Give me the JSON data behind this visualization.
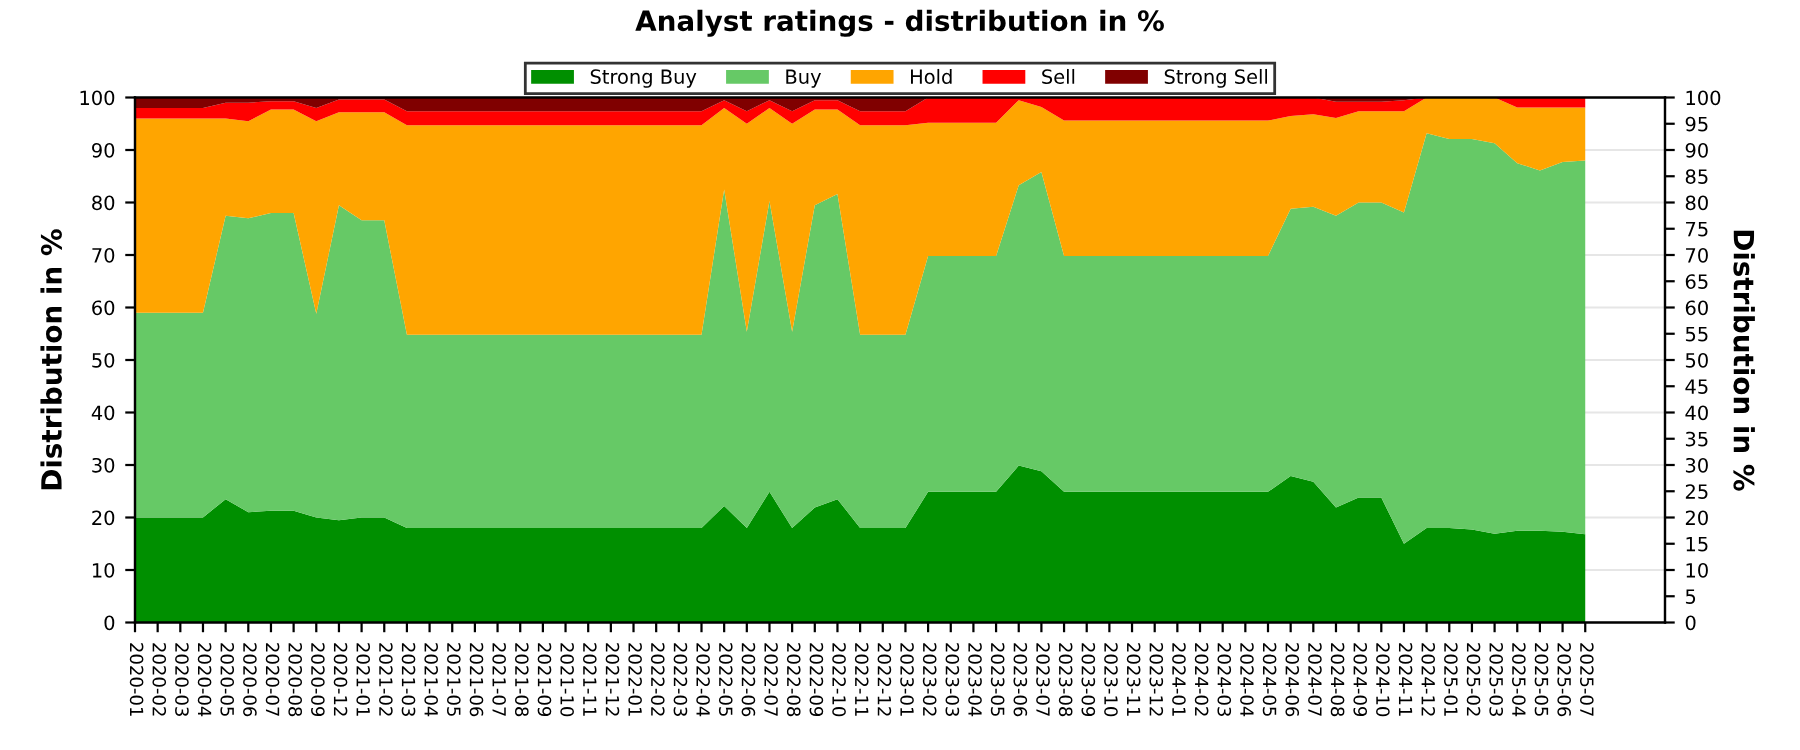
{
  "chart_data": {
    "type": "area",
    "stacked": true,
    "title": "Analyst ratings - distribution in %",
    "ylabel": "Distribution in %",
    "y2label": "Distribution in %",
    "categories": [
      "2020-01",
      "2020-02",
      "2020-03",
      "2020-04",
      "2020-05",
      "2020-06",
      "2020-07",
      "2020-08",
      "2020-09",
      "2020-12",
      "2021-01",
      "2021-02",
      "2021-03",
      "2021-04",
      "2021-05",
      "2021-06",
      "2021-07",
      "2021-08",
      "2021-09",
      "2021-10",
      "2021-11",
      "2021-12",
      "2022-01",
      "2022-02",
      "2022-03",
      "2022-04",
      "2022-05",
      "2022-06",
      "2022-07",
      "2022-08",
      "2022-09",
      "2022-10",
      "2022-11",
      "2022-12",
      "2023-01",
      "2023-02",
      "2023-03",
      "2023-04",
      "2023-05",
      "2023-06",
      "2023-07",
      "2023-08",
      "2023-09",
      "2023-10",
      "2023-11",
      "2023-12",
      "2024-01",
      "2024-02",
      "2024-03",
      "2024-04",
      "2024-05",
      "2024-06",
      "2024-07",
      "2024-08",
      "2024-09",
      "2024-10",
      "2024-11",
      "2024-12",
      "2025-01",
      "2025-02",
      "2025-03",
      "2025-04",
      "2025-05",
      "2025-06",
      "2025-07"
    ],
    "series": [
      {
        "name": "Strong Buy",
        "color": "#008f00",
        "values": [
          20,
          20,
          20,
          20,
          23.5,
          21,
          21.3,
          21.3,
          20,
          19.5,
          20,
          20,
          18,
          18,
          18,
          18,
          18,
          18,
          18,
          18,
          18,
          18,
          18,
          18,
          18,
          18,
          22.2,
          18,
          24.9,
          18,
          21.9,
          23.5,
          18,
          18,
          18,
          24.9,
          24.9,
          24.9,
          24.9,
          29.9,
          28.8,
          24.9,
          24.9,
          24.9,
          24.9,
          24.9,
          24.9,
          24.9,
          24.9,
          24.9,
          24.9,
          27.9,
          26.8,
          21.9,
          23.8,
          23.8,
          15,
          18,
          18,
          17.7,
          16.9,
          17.5,
          17.5,
          17.3,
          16.8
        ]
      },
      {
        "name": "Buy",
        "color": "#66c966",
        "values": [
          39,
          39,
          39,
          39,
          54,
          56,
          56.7,
          56.7,
          38.8,
          60,
          56.6,
          56.6,
          36.8,
          36.8,
          36.8,
          36.8,
          36.8,
          36.8,
          36.8,
          36.8,
          36.8,
          36.8,
          36.8,
          36.8,
          36.8,
          36.8,
          60.3,
          37.4,
          55.4,
          37.4,
          57.6,
          58.1,
          36.8,
          36.8,
          36.8,
          44.9,
          44.9,
          44.9,
          44.9,
          53.4,
          57,
          44.9,
          44.9,
          44.9,
          44.9,
          44.9,
          44.9,
          44.9,
          44.9,
          44.9,
          44.9,
          50.9,
          52.4,
          55.6,
          56.2,
          56.2,
          63.1,
          75.2,
          74.1,
          74.4,
          74.4,
          70,
          68.6,
          70.4,
          71.2
        ]
      },
      {
        "name": "Hold",
        "color": "#ffa500",
        "values": [
          37,
          37,
          37,
          37,
          18.5,
          18.5,
          19.7,
          19.7,
          36.7,
          17.7,
          20.6,
          20.6,
          39.9,
          39.9,
          39.9,
          39.9,
          39.9,
          39.9,
          39.9,
          39.9,
          39.9,
          39.9,
          39.9,
          39.9,
          39.9,
          39.9,
          15.5,
          39.6,
          17.7,
          39.6,
          18.2,
          16.1,
          39.9,
          39.9,
          39.9,
          25.4,
          25.4,
          25.4,
          25.4,
          16.2,
          12.4,
          25.8,
          25.8,
          25.8,
          25.8,
          25.8,
          25.8,
          25.8,
          25.8,
          25.8,
          25.8,
          17.7,
          17.6,
          18.6,
          17.4,
          17.4,
          19.3,
          6.8,
          7.9,
          7.9,
          8.7,
          10.6,
          12,
          10.4,
          10.1
        ]
      },
      {
        "name": "Sell",
        "color": "#ff0000",
        "values": [
          2,
          2,
          2,
          2,
          3,
          3.5,
          1.6,
          1.6,
          2.5,
          2.4,
          2.4,
          2.4,
          2.7,
          2.7,
          2.7,
          2.7,
          2.7,
          2.7,
          2.7,
          2.7,
          2.7,
          2.7,
          2.7,
          2.7,
          2.7,
          2.7,
          1.5,
          2.4,
          1.5,
          2.4,
          1.8,
          1.8,
          2.7,
          2.7,
          2.7,
          4.8,
          4.8,
          4.8,
          4.8,
          0.5,
          1.8,
          4.4,
          4.4,
          4.4,
          4.4,
          4.4,
          4.4,
          4.4,
          4.4,
          4.4,
          4.4,
          3.5,
          3.2,
          3.1,
          1.8,
          1.8,
          2.1,
          0,
          0,
          0,
          0,
          1.9,
          1.9,
          1.9,
          1.9
        ]
      },
      {
        "name": "Strong Sell",
        "color": "#800000",
        "values": [
          2,
          2,
          2,
          2,
          1,
          1,
          0.7,
          0.7,
          2,
          0.4,
          0.4,
          0.4,
          2.6,
          2.6,
          2.6,
          2.6,
          2.6,
          2.6,
          2.6,
          2.6,
          2.6,
          2.6,
          2.6,
          2.6,
          2.6,
          2.6,
          0.5,
          2.6,
          0.5,
          2.6,
          0.5,
          0.5,
          2.6,
          2.6,
          2.6,
          0,
          0,
          0,
          0,
          0,
          0,
          0,
          0,
          0,
          0,
          0,
          0,
          0,
          0,
          0,
          0,
          0,
          0,
          0.8,
          0.8,
          0.8,
          0.5,
          0,
          0,
          0,
          0,
          0,
          0,
          0,
          0
        ]
      }
    ],
    "ylim": [
      0,
      100
    ],
    "yticks": [
      0,
      10,
      20,
      30,
      40,
      50,
      60,
      70,
      80,
      90,
      100
    ],
    "y2lim": [
      0,
      100
    ],
    "y2ticks": [
      0,
      5,
      10,
      15,
      20,
      25,
      30,
      35,
      40,
      45,
      50,
      55,
      60,
      65,
      70,
      75,
      80,
      85,
      90,
      95,
      100
    ],
    "grid": "y",
    "legend": "top"
  }
}
